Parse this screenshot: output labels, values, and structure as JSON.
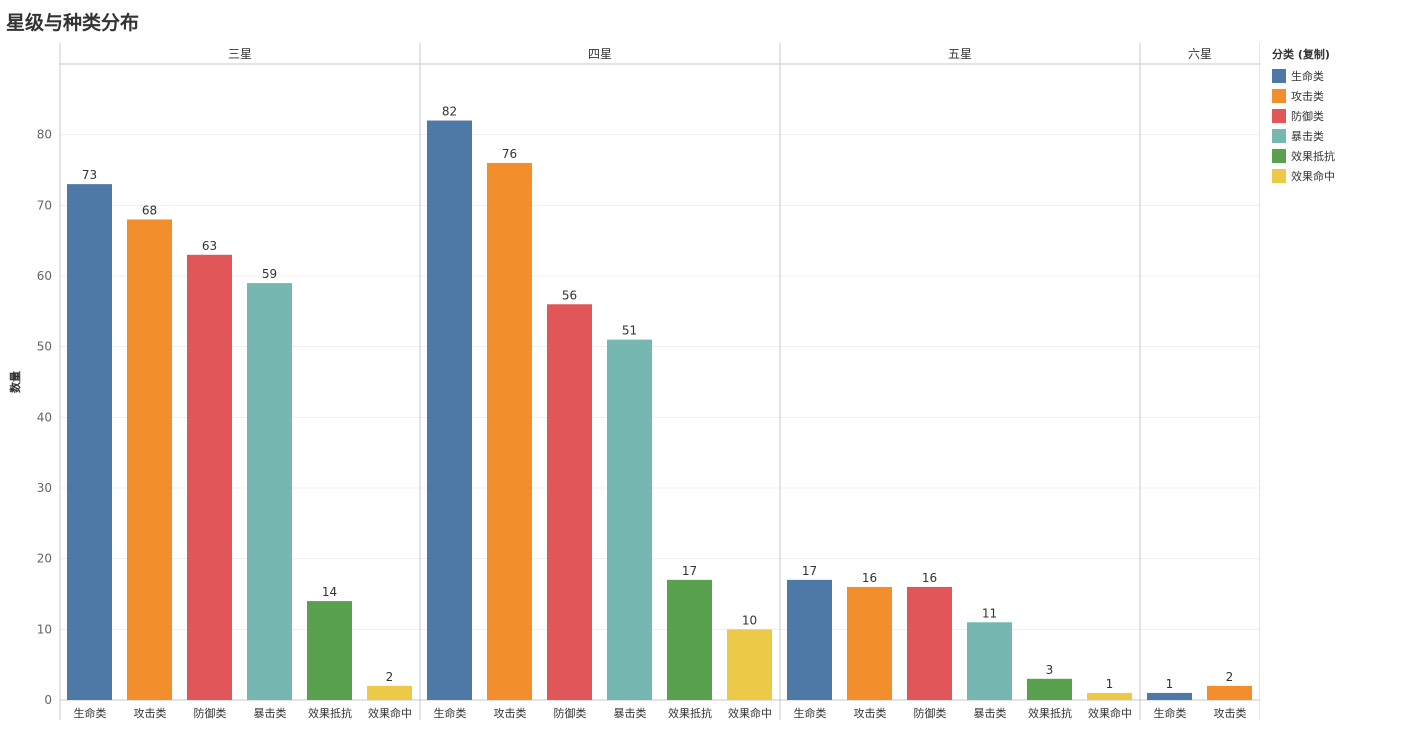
{
  "title": "星级与种类分布",
  "chart_data": {
    "type": "bar",
    "ylabel": "数量",
    "ylim": [
      0,
      90
    ],
    "yticks": [
      0,
      10,
      20,
      30,
      40,
      50,
      60,
      70,
      80
    ],
    "panels": [
      {
        "name": "三星",
        "categories": [
          "生命类",
          "攻击类",
          "防御类",
          "暴击类",
          "效果抵抗",
          "效果命中"
        ],
        "values": [
          73,
          68,
          63,
          59,
          14,
          2
        ]
      },
      {
        "name": "四星",
        "categories": [
          "生命类",
          "攻击类",
          "防御类",
          "暴击类",
          "效果抵抗",
          "效果命中"
        ],
        "values": [
          82,
          76,
          56,
          51,
          17,
          10
        ]
      },
      {
        "name": "五星",
        "categories": [
          "生命类",
          "攻击类",
          "防御类",
          "暴击类",
          "效果抵抗",
          "效果命中"
        ],
        "values": [
          17,
          16,
          16,
          11,
          3,
          1
        ]
      },
      {
        "name": "六星",
        "categories": [
          "生命类",
          "攻击类"
        ],
        "values": [
          1,
          2
        ]
      }
    ],
    "legend": {
      "title": "分类 (复制)",
      "position": "right",
      "items": [
        {
          "label": "生命类",
          "color": "#4e79a7"
        },
        {
          "label": "攻击类",
          "color": "#f28e2b"
        },
        {
          "label": "防御类",
          "color": "#e15759"
        },
        {
          "label": "暴击类",
          "color": "#76b7b2"
        },
        {
          "label": "效果抵抗",
          "color": "#59a14f"
        },
        {
          "label": "效果命中",
          "color": "#edc948"
        }
      ]
    },
    "grid": true
  }
}
